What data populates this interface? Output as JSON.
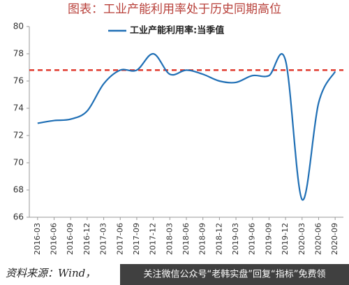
{
  "chart_data": {
    "type": "line",
    "title": "图表：工业产能利用率处于历史同期高位",
    "categories": [
      "2016-03",
      "2016-06",
      "2016-09",
      "2016-12",
      "2017-03",
      "2017-06",
      "2017-09",
      "2017-12",
      "2018-03",
      "2018-06",
      "2018-09",
      "2018-12",
      "2019-03",
      "2019-06",
      "2019-09",
      "2019-12",
      "2020-03",
      "2020-06",
      "2020-09"
    ],
    "series": [
      {
        "name": "工业产能利用率:当季值",
        "color": "#1f6fb5",
        "values": [
          72.9,
          73.1,
          73.2,
          73.8,
          75.8,
          76.8,
          76.8,
          78.0,
          76.5,
          76.8,
          76.5,
          76.0,
          75.9,
          76.4,
          76.4,
          77.5,
          67.3,
          74.4,
          76.7
        ]
      }
    ],
    "reference_line": {
      "value": 76.8,
      "color": "#e03a2e"
    },
    "ylim": [
      66,
      80
    ],
    "yticks": [
      66,
      68,
      70,
      72,
      74,
      76,
      78,
      80
    ],
    "source": "资料来源：Wind，",
    "watermark": "关注微信公众号“老韩实盘”回复“指标”免费领"
  }
}
